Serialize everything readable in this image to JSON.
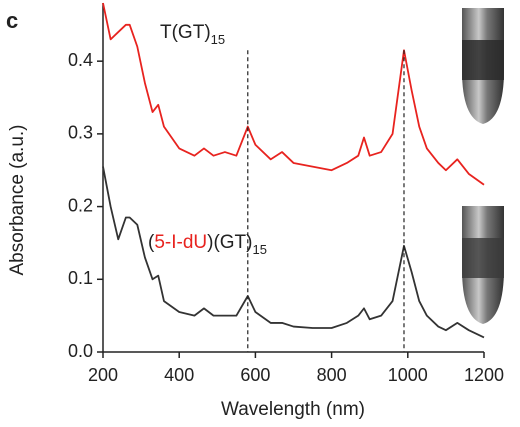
{
  "chart_data": {
    "type": "line",
    "panel_label": "c",
    "xlabel": "Wavelength (nm)",
    "ylabel": "Absorbance (a.u.)",
    "x": [
      200,
      220,
      240,
      260,
      270,
      290,
      310,
      330,
      345,
      360,
      400,
      440,
      465,
      490,
      520,
      550,
      580,
      600,
      640,
      670,
      700,
      750,
      800,
      840,
      870,
      885,
      900,
      930,
      960,
      990,
      1010,
      1030,
      1050,
      1080,
      1100,
      1130,
      1160,
      1200
    ],
    "series": [
      {
        "color": "#e8231f",
        "values": [
          0.48,
          0.43,
          0.44,
          0.45,
          0.45,
          0.42,
          0.37,
          0.33,
          0.34,
          0.31,
          0.28,
          0.27,
          0.28,
          0.27,
          0.275,
          0.27,
          0.31,
          0.285,
          0.265,
          0.275,
          0.26,
          0.255,
          0.25,
          0.26,
          0.27,
          0.295,
          0.27,
          0.275,
          0.3,
          0.415,
          0.36,
          0.31,
          0.28,
          0.26,
          0.25,
          0.265,
          0.245,
          0.23
        ]
      },
      {
        "color": "#333333",
        "values": [
          0.255,
          0.2,
          0.155,
          0.185,
          0.185,
          0.175,
          0.13,
          0.1,
          0.105,
          0.07,
          0.055,
          0.05,
          0.06,
          0.05,
          0.05,
          0.05,
          0.077,
          0.055,
          0.04,
          0.04,
          0.035,
          0.033,
          0.033,
          0.04,
          0.05,
          0.06,
          0.045,
          0.05,
          0.07,
          0.146,
          0.11,
          0.07,
          0.05,
          0.035,
          0.03,
          0.04,
          0.03,
          0.02
        ]
      }
    ],
    "vlines": [
      580,
      990
    ],
    "annotations": [
      {
        "parts": [
          {
            "text": "T(GT)",
            "color": "#222222"
          },
          {
            "text": "15",
            "color": "#222222",
            "sub": true
          }
        ]
      },
      {
        "parts": [
          {
            "text": "(",
            "color": "#222222"
          },
          {
            "text": "5-I-dU",
            "color": "#e8231f"
          },
          {
            "text": ")(GT)",
            "color": "#222222"
          },
          {
            "text": "15",
            "color": "#222222",
            "sub": true
          }
        ]
      }
    ],
    "xlim": [
      200,
      1200
    ],
    "ylim": [
      0,
      0.48
    ],
    "xticks": [
      200,
      400,
      600,
      800,
      1000,
      1200
    ],
    "yticks": [
      {
        "value": 0,
        "label": "0.0"
      },
      0.1,
      0.2,
      0.3,
      0.4
    ]
  }
}
